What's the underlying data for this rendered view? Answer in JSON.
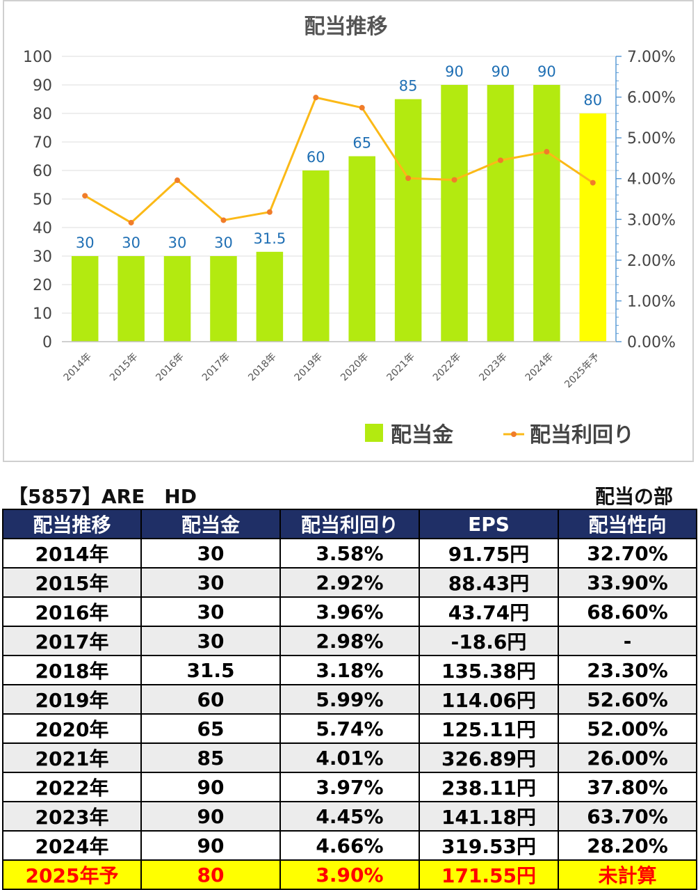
{
  "chart_data": {
    "type": "bar",
    "title": "配当推移",
    "categories": [
      "2014年",
      "2015年",
      "2016年",
      "2017年",
      "2018年",
      "2019年",
      "2020年",
      "2021年",
      "2022年",
      "2023年",
      "2024年",
      "2025年予"
    ],
    "series": [
      {
        "name": "配当金",
        "type": "bar",
        "axis": "left",
        "values": [
          30,
          30,
          30,
          30,
          31.5,
          60,
          65,
          85,
          90,
          90,
          90,
          80
        ],
        "color": "#b3ea10",
        "highlight_last_color": "#ffff00"
      },
      {
        "name": "配当利回り",
        "type": "line",
        "axis": "right",
        "values": [
          3.58,
          2.92,
          3.96,
          2.98,
          3.18,
          5.99,
          5.74,
          4.01,
          3.97,
          4.45,
          4.66,
          3.9
        ],
        "color": "#fbb917",
        "marker_color": "#f07c2a"
      }
    ],
    "bar_labels": [
      "30",
      "30",
      "30",
      "30",
      "31.5",
      "60",
      "65",
      "85",
      "90",
      "90",
      "90",
      "80"
    ],
    "y_left": {
      "min": 0,
      "max": 100,
      "ticks": [
        "0",
        "10",
        "20",
        "30",
        "40",
        "50",
        "60",
        "70",
        "80",
        "90",
        "100"
      ]
    },
    "y_right": {
      "min": 0,
      "max": 7,
      "ticks": [
        "0.00%",
        "1.00%",
        "2.00%",
        "3.00%",
        "4.00%",
        "5.00%",
        "6.00%",
        "7.00%"
      ]
    },
    "grid": true,
    "legend": "bottom-right"
  },
  "table": {
    "code_label": "【5857】ARE　HD",
    "section_label": "配当の部",
    "headers": [
      "配当推移",
      "配当金",
      "配当利回り",
      "EPS",
      "配当性向"
    ],
    "rows": [
      [
        "2014年",
        "30",
        "3.58%",
        "91.75円",
        "32.70%"
      ],
      [
        "2015年",
        "30",
        "2.92%",
        "88.43円",
        "33.90%"
      ],
      [
        "2016年",
        "30",
        "3.96%",
        "43.74円",
        "68.60%"
      ],
      [
        "2017年",
        "30",
        "2.98%",
        "-18.6円",
        "-"
      ],
      [
        "2018年",
        "31.5",
        "3.18%",
        "135.38円",
        "23.30%"
      ],
      [
        "2019年",
        "60",
        "5.99%",
        "114.06円",
        "52.60%"
      ],
      [
        "2020年",
        "65",
        "5.74%",
        "125.11円",
        "52.00%"
      ],
      [
        "2021年",
        "85",
        "4.01%",
        "326.89円",
        "26.00%"
      ],
      [
        "2022年",
        "90",
        "3.97%",
        "238.11円",
        "37.80%"
      ],
      [
        "2023年",
        "90",
        "4.45%",
        "141.18円",
        "63.70%"
      ],
      [
        "2024年",
        "90",
        "4.66%",
        "319.53円",
        "28.20%"
      ],
      [
        "2025年予",
        "80",
        "3.90%",
        "171.55円",
        "未計算"
      ]
    ]
  }
}
